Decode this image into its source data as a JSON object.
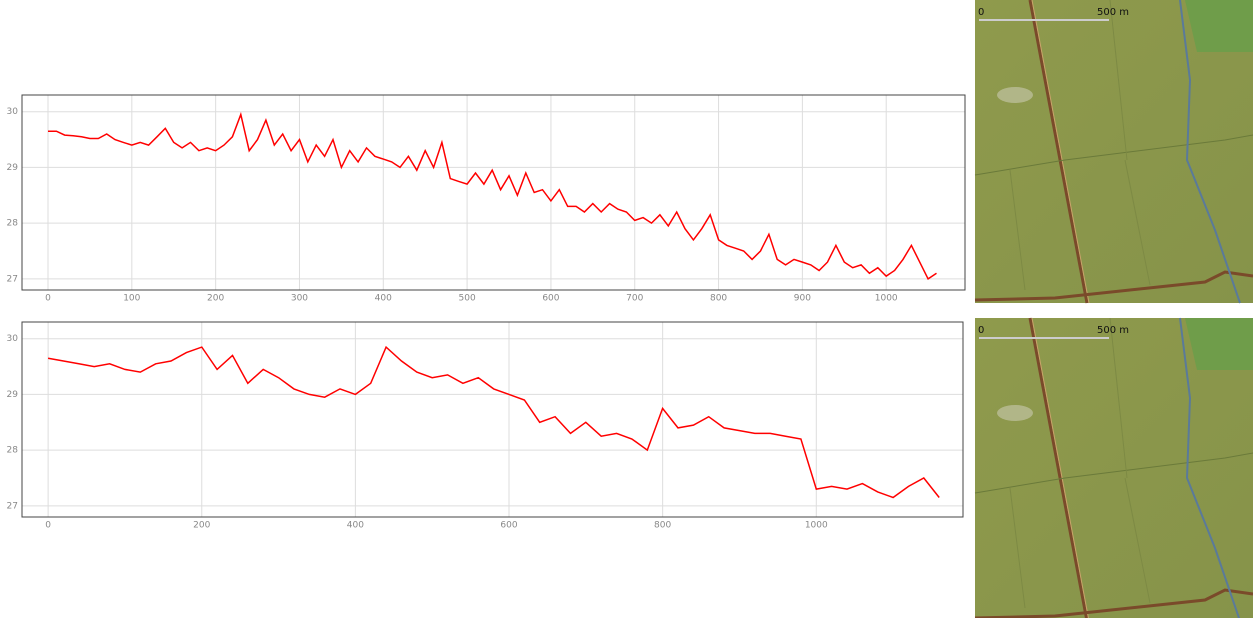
{
  "chart_data": [
    {
      "type": "line",
      "color": "#ff0000",
      "grid": true,
      "x": [
        0,
        10,
        20,
        30,
        40,
        50,
        60,
        70,
        80,
        90,
        100,
        110,
        120,
        130,
        140,
        150,
        160,
        170,
        180,
        190,
        200,
        210,
        220,
        230,
        240,
        250,
        260,
        270,
        280,
        290,
        300,
        310,
        320,
        330,
        340,
        350,
        360,
        370,
        380,
        390,
        400,
        410,
        420,
        430,
        440,
        450,
        460,
        470,
        480,
        490,
        500,
        510,
        520,
        530,
        540,
        550,
        560,
        570,
        580,
        590,
        600,
        610,
        620,
        630,
        640,
        650,
        660,
        670,
        680,
        690,
        700,
        710,
        720,
        730,
        740,
        750,
        760,
        770,
        780,
        790,
        800,
        810,
        820,
        830,
        840,
        850,
        860,
        870,
        880,
        890,
        900,
        910,
        920,
        930,
        940,
        950,
        960,
        970,
        980,
        990,
        1000,
        1010,
        1020,
        1030,
        1040,
        1050,
        1060
      ],
      "values": [
        29.65,
        29.65,
        29.58,
        29.57,
        29.55,
        29.52,
        29.52,
        29.6,
        29.5,
        29.45,
        29.4,
        29.45,
        29.4,
        29.55,
        29.7,
        29.45,
        29.35,
        29.45,
        29.3,
        29.35,
        29.3,
        29.4,
        29.55,
        29.95,
        29.3,
        29.5,
        29.85,
        29.4,
        29.6,
        29.3,
        29.5,
        29.1,
        29.4,
        29.2,
        29.5,
        29.0,
        29.3,
        29.1,
        29.35,
        29.2,
        29.15,
        29.1,
        29.0,
        29.2,
        28.95,
        29.3,
        29.0,
        29.45,
        28.8,
        28.75,
        28.7,
        28.9,
        28.7,
        28.95,
        28.6,
        28.85,
        28.5,
        28.9,
        28.55,
        28.6,
        28.4,
        28.6,
        28.3,
        28.3,
        28.2,
        28.35,
        28.2,
        28.35,
        28.25,
        28.2,
        28.05,
        28.1,
        28.0,
        28.15,
        27.95,
        28.2,
        27.9,
        27.7,
        27.9,
        28.15,
        27.7,
        27.6,
        27.55,
        27.5,
        27.35,
        27.5,
        27.8,
        27.35,
        27.25,
        27.35,
        27.3,
        27.25,
        27.15,
        27.3,
        27.6,
        27.3,
        27.2,
        27.25,
        27.1,
        27.2,
        27.05,
        27.15,
        27.35,
        27.6,
        27.3,
        27.0,
        27.1
      ],
      "xlim": [
        -31,
        1094
      ],
      "ylim": [
        26.8,
        30.3
      ],
      "xticks": [
        0,
        100,
        200,
        300,
        400,
        500,
        600,
        700,
        800,
        900,
        1000
      ],
      "yticks": [
        27,
        28,
        29,
        30
      ]
    },
    {
      "type": "line",
      "color": "#ff0000",
      "grid": true,
      "x": [
        0,
        20,
        40,
        60,
        80,
        100,
        120,
        140,
        160,
        180,
        200,
        220,
        240,
        260,
        280,
        300,
        320,
        340,
        360,
        380,
        400,
        420,
        440,
        460,
        480,
        500,
        520,
        540,
        560,
        580,
        600,
        620,
        640,
        660,
        680,
        700,
        720,
        740,
        760,
        780,
        800,
        820,
        840,
        860,
        880,
        900,
        920,
        940,
        960,
        980,
        1000,
        1020,
        1040,
        1060,
        1080,
        1100,
        1120,
        1140,
        1160
      ],
      "values": [
        29.65,
        29.6,
        29.55,
        29.5,
        29.55,
        29.45,
        29.4,
        29.55,
        29.6,
        29.75,
        29.85,
        29.45,
        29.7,
        29.2,
        29.45,
        29.3,
        29.1,
        29.0,
        28.95,
        29.1,
        29.0,
        29.2,
        29.85,
        29.6,
        29.4,
        29.3,
        29.35,
        29.2,
        29.3,
        29.1,
        29.0,
        28.9,
        28.5,
        28.6,
        28.3,
        28.5,
        28.25,
        28.3,
        28.2,
        28.0,
        28.75,
        28.4,
        28.45,
        28.6,
        28.4,
        28.35,
        28.3,
        28.3,
        28.25,
        28.2,
        27.3,
        27.35,
        27.3,
        27.4,
        27.25,
        27.15,
        27.35,
        27.5,
        27.15
      ],
      "xlim": [
        -34,
        1191
      ],
      "ylim": [
        26.8,
        30.3
      ],
      "xticks": [
        0,
        200,
        400,
        600,
        800,
        1000
      ],
      "yticks": [
        27,
        28,
        29,
        30
      ]
    }
  ],
  "maps": [
    {
      "scale_labels": [
        "0",
        "500 m"
      ]
    },
    {
      "scale_labels": [
        "0",
        "500 m"
      ]
    }
  ]
}
